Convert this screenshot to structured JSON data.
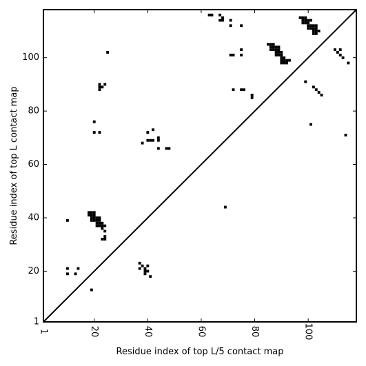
{
  "chart_data": {
    "type": "heatmap",
    "xlabel": "Residue index of top L/5 contact map",
    "ylabel": "Residue index of top L contact map",
    "xlim": [
      1,
      118
    ],
    "ylim": [
      1,
      118
    ],
    "xticks": [
      1,
      20,
      40,
      60,
      80,
      100
    ],
    "yticks": [
      1,
      20,
      40,
      60,
      80,
      100
    ],
    "xticks_rotated": true,
    "grid": false,
    "diagonal": true,
    "cell_color": "#000000",
    "cells": [
      [
        63,
        116
      ],
      [
        64,
        116
      ],
      [
        67,
        116
      ],
      [
        68,
        115
      ],
      [
        67,
        114
      ],
      [
        68,
        114
      ],
      [
        71,
        114
      ],
      [
        71,
        112
      ],
      [
        75,
        112
      ],
      [
        25,
        102
      ],
      [
        75,
        103
      ],
      [
        71,
        101
      ],
      [
        72,
        101
      ],
      [
        75,
        101
      ],
      [
        85,
        105
      ],
      [
        86,
        105
      ],
      [
        87,
        105
      ],
      [
        86,
        104
      ],
      [
        87,
        104
      ],
      [
        88,
        104
      ],
      [
        89,
        104
      ],
      [
        86,
        103
      ],
      [
        87,
        103
      ],
      [
        88,
        103
      ],
      [
        89,
        103
      ],
      [
        88,
        102
      ],
      [
        89,
        102
      ],
      [
        90,
        102
      ],
      [
        88,
        101
      ],
      [
        89,
        101
      ],
      [
        90,
        101
      ],
      [
        90,
        100
      ],
      [
        91,
        100
      ],
      [
        90,
        99
      ],
      [
        91,
        99
      ],
      [
        92,
        99
      ],
      [
        93,
        99
      ],
      [
        90,
        98
      ],
      [
        91,
        98
      ],
      [
        92,
        98
      ],
      [
        97,
        115
      ],
      [
        98,
        115
      ],
      [
        99,
        115
      ],
      [
        98,
        114
      ],
      [
        99,
        114
      ],
      [
        100,
        114
      ],
      [
        101,
        114
      ],
      [
        98,
        113
      ],
      [
        99,
        113
      ],
      [
        100,
        113
      ],
      [
        100,
        112
      ],
      [
        101,
        112
      ],
      [
        102,
        112
      ],
      [
        103,
        112
      ],
      [
        100,
        111
      ],
      [
        101,
        111
      ],
      [
        102,
        111
      ],
      [
        103,
        111
      ],
      [
        102,
        110
      ],
      [
        103,
        110
      ],
      [
        104,
        110
      ],
      [
        102,
        109
      ],
      [
        103,
        109
      ],
      [
        110,
        103
      ],
      [
        112,
        103
      ],
      [
        111,
        102
      ],
      [
        112,
        101
      ],
      [
        113,
        100
      ],
      [
        115,
        98
      ],
      [
        99,
        91
      ],
      [
        102,
        89
      ],
      [
        103,
        88
      ],
      [
        104,
        87
      ],
      [
        105,
        86
      ],
      [
        101,
        75
      ],
      [
        114,
        71
      ],
      [
        22,
        90
      ],
      [
        24,
        90
      ],
      [
        22,
        89
      ],
      [
        23,
        89
      ],
      [
        22,
        88
      ],
      [
        72,
        88
      ],
      [
        75,
        88
      ],
      [
        76,
        88
      ],
      [
        79,
        86
      ],
      [
        79,
        85
      ],
      [
        20,
        76
      ],
      [
        20,
        72
      ],
      [
        22,
        72
      ],
      [
        40,
        72
      ],
      [
        42,
        73
      ],
      [
        40,
        69
      ],
      [
        41,
        69
      ],
      [
        42,
        69
      ],
      [
        44,
        70
      ],
      [
        44,
        69
      ],
      [
        38,
        68
      ],
      [
        44,
        66
      ],
      [
        47,
        66
      ],
      [
        48,
        66
      ],
      [
        69,
        44
      ],
      [
        10,
        39
      ],
      [
        18,
        42
      ],
      [
        19,
        42
      ],
      [
        20,
        42
      ],
      [
        18,
        41
      ],
      [
        19,
        41
      ],
      [
        20,
        41
      ],
      [
        19,
        40
      ],
      [
        20,
        40
      ],
      [
        21,
        40
      ],
      [
        22,
        40
      ],
      [
        19,
        39
      ],
      [
        20,
        39
      ],
      [
        21,
        39
      ],
      [
        22,
        39
      ],
      [
        21,
        38
      ],
      [
        22,
        38
      ],
      [
        23,
        38
      ],
      [
        21,
        37
      ],
      [
        22,
        37
      ],
      [
        23,
        37
      ],
      [
        24,
        37
      ],
      [
        23,
        36
      ],
      [
        24,
        35
      ],
      [
        24,
        33
      ],
      [
        23,
        32
      ],
      [
        24,
        32
      ],
      [
        37,
        23
      ],
      [
        38,
        22
      ],
      [
        37,
        21
      ],
      [
        39,
        21
      ],
      [
        40,
        22
      ],
      [
        39,
        20
      ],
      [
        40,
        20
      ],
      [
        39,
        19
      ],
      [
        41,
        18
      ],
      [
        10,
        21
      ],
      [
        14,
        21
      ],
      [
        10,
        19
      ],
      [
        13,
        19
      ],
      [
        19,
        13
      ]
    ]
  }
}
